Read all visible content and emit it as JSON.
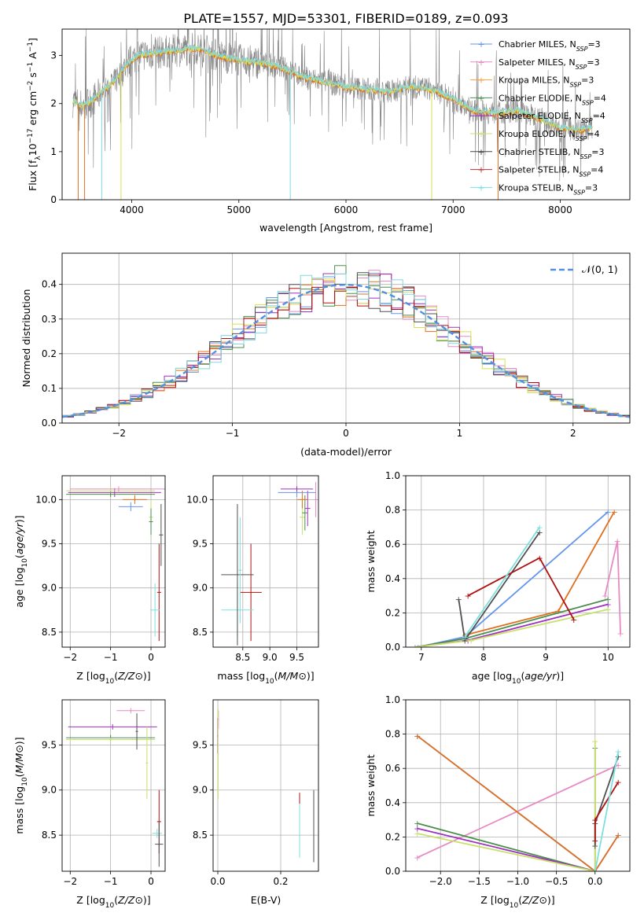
{
  "page": {
    "title": "PLATE=1557, MJD=53301, FIBERID=0189, z=0.093"
  },
  "colors": {
    "c0": "#6495ed",
    "c1": "#e78ac3",
    "c2": "#ff9f3b",
    "c3": "#666666",
    "c4": "#999999",
    "c5": "#c8e06c",
    "c6": "#444444",
    "c7": "#c03030",
    "c8": "#7fdfdf",
    "orange": "#e07020",
    "green": "#4b8f4b",
    "purple": "#a030c0",
    "gray": "#888888",
    "pink": "#f08090",
    "yellow": "#d8e050",
    "darkred": "#b01010",
    "darkgray": "#505050",
    "cyan": "#80d8e0",
    "blue": "#5080e0"
  },
  "chart_data": [
    {
      "id": "spectrum",
      "type": "line",
      "title": "PLATE=1557, MJD=53301, FIBERID=0189, z=0.093",
      "xlabel": "wavelength [Angstrom, rest frame]",
      "ylabel_parts": [
        "Flux [f",
        "λ",
        "10",
        "−17",
        " erg cm",
        "−2",
        " s",
        "−1",
        " A",
        "−1",
        "]"
      ],
      "xlim": [
        3350,
        8650
      ],
      "ylim": [
        0,
        3.55
      ],
      "xticks": [
        4000,
        5000,
        6000,
        7000,
        8000
      ],
      "yticks": [
        0,
        1,
        2,
        3
      ],
      "legend": [
        {
          "label": "Chabrier MILES, N",
          "sub": "SSP",
          "suffix": "=3",
          "color": "#6495ed",
          "marker": "+"
        },
        {
          "label": "Salpeter MILES, N",
          "sub": "SSP",
          "suffix": "=3",
          "color": "#e78ac3",
          "marker": "+"
        },
        {
          "label": "Kroupa MILES, N",
          "sub": "SSP",
          "suffix": "=3",
          "color": "#ff9f3b",
          "marker": "+"
        },
        {
          "label": "Chabrier ELODIE, N",
          "sub": "SSP",
          "suffix": "=4",
          "color": "#4b8f4b",
          "marker": "+"
        },
        {
          "label": "Salpeter ELODIE, N",
          "sub": "SSP",
          "suffix": "=4",
          "color": "#a030c0",
          "marker": "+"
        },
        {
          "label": "Kroupa ELODIE, N",
          "sub": "SSP",
          "suffix": "=4",
          "color": "#c8e06c",
          "marker": "+"
        },
        {
          "label": "Chabrier STELIB, N",
          "sub": "SSP",
          "suffix": "=3",
          "color": "#444444",
          "marker": "+"
        },
        {
          "label": "Salpeter STELIB, N",
          "sub": "SSP",
          "suffix": "=4",
          "color": "#c03030",
          "marker": "+"
        },
        {
          "label": "Kroupa STELIB, N",
          "sub": "SSP",
          "suffix": "=3",
          "color": "#7fdfdf",
          "marker": "+"
        }
      ],
      "continuum": [
        [
          3450,
          2.05
        ],
        [
          3550,
          1.95
        ],
        [
          3650,
          2.1
        ],
        [
          3750,
          2.3
        ],
        [
          3850,
          2.5
        ],
        [
          3950,
          2.8
        ],
        [
          4050,
          3.0
        ],
        [
          4200,
          3.05
        ],
        [
          4400,
          3.1
        ],
        [
          4600,
          3.15
        ],
        [
          4800,
          3.0
        ],
        [
          5000,
          2.9
        ],
        [
          5200,
          2.85
        ],
        [
          5400,
          2.75
        ],
        [
          5600,
          2.55
        ],
        [
          5800,
          2.45
        ],
        [
          6000,
          2.35
        ],
        [
          6200,
          2.3
        ],
        [
          6400,
          2.25
        ],
        [
          6600,
          2.35
        ],
        [
          6800,
          2.3
        ],
        [
          7000,
          2.1
        ],
        [
          7200,
          1.85
        ],
        [
          7400,
          1.8
        ],
        [
          7600,
          1.85
        ],
        [
          7800,
          1.7
        ],
        [
          8000,
          1.5
        ],
        [
          8200,
          1.45
        ],
        [
          8300,
          1.5
        ]
      ]
    },
    {
      "id": "residuals",
      "type": "line",
      "xlabel": "(data-model)/error",
      "ylabel": "Normed distribution",
      "xlim": [
        -2.5,
        2.5
      ],
      "ylim": [
        0,
        0.49
      ],
      "xticks": [
        -2,
        -1,
        0,
        1,
        2
      ],
      "yticks": [
        0.0,
        0.1,
        0.2,
        0.3,
        0.4
      ],
      "xtick_labels": [
        "−2",
        "−1",
        "0",
        "1",
        "2"
      ],
      "ytick_labels": [
        "0.0",
        "0.1",
        "0.2",
        "0.3",
        "0.4"
      ],
      "legend": [
        {
          "label": "𝒩(0, 1)",
          "color": "#5590e0",
          "style": "dashed"
        }
      ],
      "histogram_bin_width": 0.1
    },
    {
      "id": "age_vs_Z",
      "type": "scatter",
      "xlabel": "Z [log10(Z/Z⊙)]",
      "ylabel": "age  [log10(age/yr)]",
      "xlim": [
        -2.2,
        0.35
      ],
      "ylim": [
        8.33,
        10.27
      ],
      "xticks": [
        -2,
        -1,
        0
      ],
      "yticks": [
        8.5,
        9.0,
        9.5,
        10.0
      ],
      "xtick_labels": [
        "−2",
        "−1",
        "0"
      ],
      "ytick_labels": [
        "8.5",
        "9.0",
        "9.5",
        "10.0"
      ],
      "points": [
        {
          "x": 0.2,
          "y": 8.95,
          "xerr": 0.05,
          "yerr": 0.55,
          "color": "#b01010"
        },
        {
          "x": 0.1,
          "y": 8.75,
          "xerr": 0.12,
          "yerr": 0.3,
          "color": "#7fdfdf"
        },
        {
          "x": 0.25,
          "y": 9.6,
          "xerr": 0.05,
          "yerr": 0.35,
          "color": "#505050"
        },
        {
          "x": 0.0,
          "y": 9.8,
          "xerr": 0.05,
          "yerr": 0.2,
          "color": "#c8e06c"
        },
        {
          "x": 0.0,
          "y": 9.75,
          "xerr": 0.05,
          "yerr": 0.15,
          "color": "#4b8f4b"
        },
        {
          "x": -0.5,
          "y": 9.92,
          "xerr": 0.3,
          "yerr": 0.05,
          "color": "#6495ed"
        },
        {
          "x": -0.4,
          "y": 10.0,
          "xerr": 0.3,
          "yerr": 0.05,
          "color": "#e07020"
        },
        {
          "x": -0.9,
          "y": 10.08,
          "xerr": 1.15,
          "yerr": 0.05,
          "color": "#a030c0"
        },
        {
          "x": -1.0,
          "y": 10.1,
          "xerr": 1.1,
          "yerr": 0.05,
          "color": "#c8e06c"
        },
        {
          "x": -0.8,
          "y": 10.12,
          "xerr": 1.2,
          "yerr": 0.03,
          "color": "#e78ac3"
        },
        {
          "x": -1.0,
          "y": 10.06,
          "xerr": 1.1,
          "yerr": 0.03,
          "color": "#4b8f4b"
        }
      ]
    },
    {
      "id": "age_vs_mass",
      "type": "scatter",
      "xlabel": "mass [log10(M/M⊙)]",
      "ylabel": "",
      "xlim": [
        7.95,
        9.9
      ],
      "ylim": [
        8.33,
        10.27
      ],
      "xticks": [
        8.5,
        9.0,
        9.5
      ],
      "yticks": [
        8.5,
        9.0,
        9.5,
        10.0
      ],
      "xtick_labels": [
        "8.5",
        "9.0",
        "9.5"
      ],
      "ytick_labels": [
        "8.5",
        "9.0",
        "9.5",
        "10.0"
      ],
      "points": [
        {
          "x": 8.65,
          "y": 8.95,
          "xerr": 0.2,
          "yerr": 0.55,
          "color": "#b01010"
        },
        {
          "x": 8.4,
          "y": 8.75,
          "xerr": 0.3,
          "yerr": 0.3,
          "color": "#7fdfdf"
        },
        {
          "x": 8.4,
          "y": 9.15,
          "xerr": 0.3,
          "yerr": 0.8,
          "color": "#505050"
        },
        {
          "x": 8.45,
          "y": 9.2,
          "xerr": 0.03,
          "yerr": 0.6,
          "color": "#7fdfdf"
        },
        {
          "x": 9.6,
          "y": 9.8,
          "xerr": 0.05,
          "yerr": 0.2,
          "color": "#c8e06c"
        },
        {
          "x": 9.65,
          "y": 9.85,
          "xerr": 0.05,
          "yerr": 0.2,
          "color": "#4b8f4b"
        },
        {
          "x": 9.7,
          "y": 9.9,
          "xerr": 0.05,
          "yerr": 0.2,
          "color": "#a030c0"
        },
        {
          "x": 9.6,
          "y": 10.0,
          "xerr": 0.1,
          "yerr": 0.1,
          "color": "#e07020"
        },
        {
          "x": 9.5,
          "y": 10.08,
          "xerr": 0.35,
          "yerr": 0.05,
          "color": "#6495ed"
        },
        {
          "x": 9.85,
          "y": 10.0,
          "xerr": 0.03,
          "yerr": 0.2,
          "color": "#e78ac3"
        },
        {
          "x": 9.5,
          "y": 10.12,
          "xerr": 0.3,
          "yerr": 0.03,
          "color": "#a030c0"
        }
      ]
    },
    {
      "id": "mass_weight_vs_age",
      "type": "line",
      "xlabel": "age  [log10(age/yr)]",
      "ylabel": "mass weight",
      "xlim": [
        6.75,
        10.35
      ],
      "ylim": [
        0,
        1.0
      ],
      "xticks": [
        7,
        8,
        9,
        10
      ],
      "yticks": [
        0.0,
        0.2,
        0.4,
        0.6,
        0.8,
        1.0
      ],
      "xtick_labels": [
        "7",
        "8",
        "9",
        "10"
      ],
      "ytick_labels": [
        "0.0",
        "0.2",
        "0.4",
        "0.6",
        "0.8",
        "1.0"
      ],
      "series": [
        {
          "color": "#6495ed",
          "points": [
            [
              6.95,
              0.0
            ],
            [
              7.7,
              0.06
            ],
            [
              10.0,
              0.79
            ]
          ]
        },
        {
          "color": "#e78ac3",
          "points": [
            [
              9.95,
              0.3
            ],
            [
              10.15,
              0.62
            ],
            [
              10.2,
              0.08
            ]
          ]
        },
        {
          "color": "#e07020",
          "points": [
            [
              7.7,
              0.07
            ],
            [
              9.2,
              0.21
            ],
            [
              10.1,
              0.79
            ]
          ]
        },
        {
          "color": "#4b8f4b",
          "points": [
            [
              6.9,
              0.0
            ],
            [
              7.7,
              0.05
            ],
            [
              10.0,
              0.28
            ]
          ]
        },
        {
          "color": "#a030c0",
          "points": [
            [
              6.9,
              0.0
            ],
            [
              7.75,
              0.04
            ],
            [
              10.0,
              0.25
            ]
          ]
        },
        {
          "color": "#c8e06c",
          "points": [
            [
              6.9,
              0.0
            ],
            [
              7.8,
              0.04
            ],
            [
              10.0,
              0.22
            ]
          ]
        },
        {
          "color": "#505050",
          "points": [
            [
              7.6,
              0.28
            ],
            [
              7.7,
              0.04
            ],
            [
              8.9,
              0.67
            ]
          ]
        },
        {
          "color": "#b01010",
          "points": [
            [
              7.75,
              0.3
            ],
            [
              8.9,
              0.52
            ],
            [
              9.45,
              0.16
            ]
          ]
        },
        {
          "color": "#7fdfdf",
          "points": [
            [
              7.7,
              0.06
            ],
            [
              8.9,
              0.7
            ]
          ]
        }
      ]
    },
    {
      "id": "mass_vs_Z",
      "type": "scatter",
      "xlabel": "Z [log10(Z/Z⊙)]",
      "ylabel": "mass [log10(M/M⊙)]",
      "xlim": [
        -2.2,
        0.35
      ],
      "ylim": [
        8.1,
        10.0
      ],
      "xticks": [
        -2,
        -1,
        0
      ],
      "yticks": [
        8.5,
        9.0,
        9.5
      ],
      "xtick_labels": [
        "−2",
        "−1",
        "0"
      ],
      "ytick_labels": [
        "8.5",
        "9.0",
        "9.5"
      ],
      "points": [
        {
          "x": -0.5,
          "y": 9.88,
          "xerr": 0.35,
          "yerr": 0.03,
          "color": "#e78ac3"
        },
        {
          "x": -0.95,
          "y": 9.7,
          "xerr": 1.1,
          "yerr": 0.03,
          "color": "#a030c0"
        },
        {
          "x": -1.0,
          "y": 9.58,
          "xerr": 1.1,
          "yerr": 0.03,
          "color": "#4b8f4b"
        },
        {
          "x": -1.0,
          "y": 9.56,
          "xerr": 1.1,
          "yerr": 0.02,
          "color": "#c8e06c"
        },
        {
          "x": -0.35,
          "y": 9.65,
          "xerr": 0.03,
          "yerr": 0.2,
          "color": "#505050"
        },
        {
          "x": -0.1,
          "y": 9.3,
          "xerr": 0.03,
          "yerr": 0.4,
          "color": "#c8e06c"
        },
        {
          "x": 0.2,
          "y": 8.65,
          "xerr": 0.05,
          "yerr": 0.35,
          "color": "#b01010"
        },
        {
          "x": 0.15,
          "y": 8.52,
          "xerr": 0.12,
          "yerr": 0.05,
          "color": "#7fdfdf"
        },
        {
          "x": 0.2,
          "y": 8.4,
          "xerr": 0.1,
          "yerr": 0.25,
          "color": "#505050"
        }
      ]
    },
    {
      "id": "mass_vs_ebv",
      "type": "scatter",
      "xlabel": "E(B-V)",
      "ylabel": "",
      "xlim": [
        -0.015,
        0.32
      ],
      "ylim": [
        8.1,
        10.0
      ],
      "xticks": [
        0.0,
        0.2
      ],
      "yticks": [
        8.5,
        9.0,
        9.5
      ],
      "xtick_labels": [
        "0.0",
        "0.2"
      ],
      "ytick_labels": [
        "8.5",
        "9.0",
        "9.5"
      ],
      "points": [
        {
          "x": 0.002,
          "y": 9.78,
          "xerr": 0.002,
          "yerr": 0.1,
          "color": "#e78ac3"
        },
        {
          "x": 0.0,
          "y": 9.6,
          "xerr": 0.002,
          "yerr": 0.2,
          "color": "#a030c0"
        },
        {
          "x": 0.001,
          "y": 9.4,
          "xerr": 0.002,
          "yerr": 0.5,
          "color": "#c8e06c"
        },
        {
          "x": 0.26,
          "y": 8.7,
          "xerr": 0.001,
          "yerr": 0.27,
          "color": "#b01010"
        },
        {
          "x": 0.26,
          "y": 8.55,
          "xerr": 0.001,
          "yerr": 0.3,
          "color": "#7fdfdf"
        },
        {
          "x": 0.305,
          "y": 8.6,
          "xerr": 0.001,
          "yerr": 0.4,
          "color": "#505050"
        }
      ]
    },
    {
      "id": "mass_weight_vs_Z",
      "type": "line",
      "xlabel": "Z [log10(Z/Z⊙)]",
      "ylabel": "mass weight",
      "xlim": [
        -2.45,
        0.45
      ],
      "ylim": [
        0,
        1.0
      ],
      "xticks": [
        -2.0,
        -1.5,
        -1.0,
        -0.5,
        0.0
      ],
      "yticks": [
        0.0,
        0.2,
        0.4,
        0.6,
        0.8,
        1.0
      ],
      "xtick_labels": [
        "−2.0",
        "−1.5",
        "−1.0",
        "−0.5",
        "0.0"
      ],
      "ytick_labels": [
        "0.0",
        "0.2",
        "0.4",
        "0.6",
        "0.8",
        "1.0"
      ],
      "series": [
        {
          "color": "#6495ed",
          "points": [
            [
              -2.3,
              0.79
            ],
            [
              0.0,
              0.0
            ],
            [
              0.3,
              0.21
            ]
          ]
        },
        {
          "color": "#e78ac3",
          "points": [
            [
              -2.3,
              0.08
            ],
            [
              0.3,
              0.62
            ]
          ]
        },
        {
          "color": "#e07020",
          "points": [
            [
              -2.3,
              0.79
            ],
            [
              0.0,
              0.0
            ],
            [
              0.3,
              0.21
            ]
          ]
        },
        {
          "color": "#4b8f4b",
          "points": [
            [
              -2.3,
              0.28
            ],
            [
              0.0,
              0.0
            ],
            [
              0.0,
              0.72
            ]
          ]
        },
        {
          "color": "#a030c0",
          "points": [
            [
              -2.3,
              0.25
            ],
            [
              0.0,
              0.0
            ]
          ]
        },
        {
          "color": "#c8e06c",
          "points": [
            [
              -2.3,
              0.22
            ],
            [
              0.0,
              0.0
            ],
            [
              0.0,
              0.76
            ]
          ]
        },
        {
          "color": "#505050",
          "points": [
            [
              0.0,
              0.15
            ],
            [
              0.0,
              0.28
            ],
            [
              0.3,
              0.67
            ]
          ]
        },
        {
          "color": "#b01010",
          "points": [
            [
              0.0,
              0.18
            ],
            [
              0.0,
              0.3
            ],
            [
              0.3,
              0.52
            ]
          ]
        },
        {
          "color": "#7fdfdf",
          "points": [
            [
              0.0,
              0.0
            ],
            [
              0.3,
              0.7
            ]
          ]
        }
      ]
    }
  ]
}
